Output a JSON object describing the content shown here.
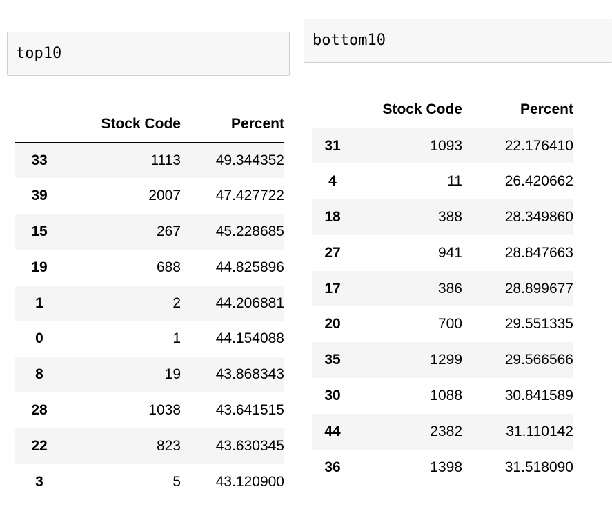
{
  "left": {
    "cell_input": "top10",
    "columns": [
      "",
      "Stock Code",
      "Percent"
    ],
    "rows": [
      {
        "index": "33",
        "code": "1113",
        "percent": "49.344352"
      },
      {
        "index": "39",
        "code": "2007",
        "percent": "47.427722"
      },
      {
        "index": "15",
        "code": "267",
        "percent": "45.228685"
      },
      {
        "index": "19",
        "code": "688",
        "percent": "44.825896"
      },
      {
        "index": "1",
        "code": "2",
        "percent": "44.206881"
      },
      {
        "index": "0",
        "code": "1",
        "percent": "44.154088"
      },
      {
        "index": "8",
        "code": "19",
        "percent": "43.868343"
      },
      {
        "index": "28",
        "code": "1038",
        "percent": "43.641515"
      },
      {
        "index": "22",
        "code": "823",
        "percent": "43.630345"
      },
      {
        "index": "3",
        "code": "5",
        "percent": "43.120900"
      }
    ]
  },
  "right": {
    "cell_input": "bottom10",
    "columns": [
      "",
      "Stock Code",
      "Percent"
    ],
    "rows": [
      {
        "index": "31",
        "code": "1093",
        "percent": "22.176410"
      },
      {
        "index": "4",
        "code": "11",
        "percent": "26.420662"
      },
      {
        "index": "18",
        "code": "388",
        "percent": "28.349860"
      },
      {
        "index": "27",
        "code": "941",
        "percent": "28.847663"
      },
      {
        "index": "17",
        "code": "386",
        "percent": "28.899677"
      },
      {
        "index": "20",
        "code": "700",
        "percent": "29.551335"
      },
      {
        "index": "35",
        "code": "1299",
        "percent": "29.566566"
      },
      {
        "index": "30",
        "code": "1088",
        "percent": "30.841589"
      },
      {
        "index": "44",
        "code": "2382",
        "percent": "31.110142"
      },
      {
        "index": "36",
        "code": "1398",
        "percent": "31.518090"
      }
    ]
  }
}
